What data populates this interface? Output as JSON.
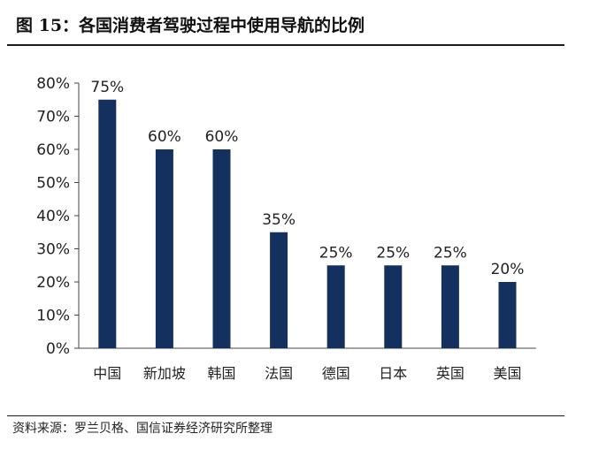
{
  "title": "图  15：各国消费者驾驶过程中使用导航的比例",
  "source": "资料来源：罗兰贝格、国信证券经济研究所整理",
  "colors": {
    "bar": "#14305e",
    "axis": "#444444"
  },
  "chart_data": {
    "type": "bar",
    "categories": [
      "中国",
      "新加坡",
      "韩国",
      "法国",
      "德国",
      "日本",
      "英国",
      "美国"
    ],
    "values": [
      75,
      60,
      60,
      35,
      25,
      25,
      25,
      20
    ],
    "value_labels": [
      "75%",
      "60%",
      "60%",
      "35%",
      "25%",
      "25%",
      "25%",
      "20%"
    ],
    "yticks": [
      "0%",
      "10%",
      "20%",
      "30%",
      "40%",
      "50%",
      "60%",
      "70%",
      "80%"
    ],
    "ylim": [
      0,
      80
    ],
    "grid": false,
    "legend": "none"
  }
}
